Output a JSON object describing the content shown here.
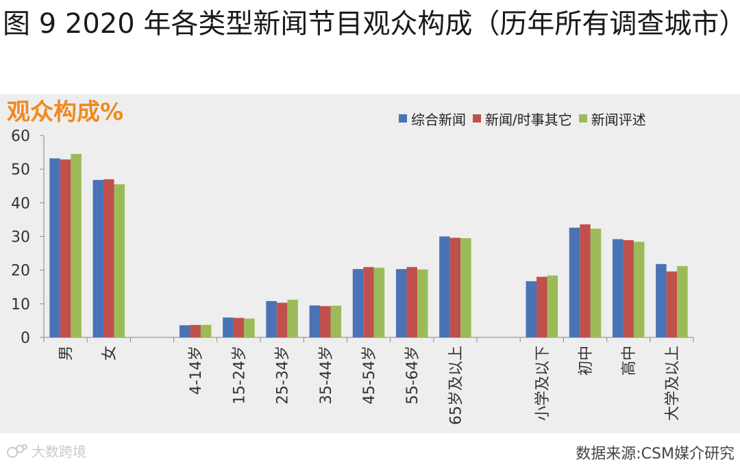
{
  "heading": "图 9 2020 年各类型新闻节目观众构成（历年所有调查城市）",
  "watermark": "大数跨境",
  "source": "数据来源:CSM媒介研究",
  "chart_data": {
    "type": "bar",
    "ylabel": "观众构成%",
    "ylim": [
      0,
      60
    ],
    "yticks": [
      0,
      10,
      20,
      30,
      40,
      50,
      60
    ],
    "grid": false,
    "legend_position": "top-right",
    "categories": [
      "男",
      "女",
      "",
      "4-14岁",
      "15-24岁",
      "25-34岁",
      "35-44岁",
      "45-54岁",
      "55-64岁",
      "65岁及以上",
      "",
      "小学及以下",
      "初中",
      "高中",
      "大学及以上"
    ],
    "series": [
      {
        "name": "综合新闻",
        "color": "#4a72b6",
        "values": [
          53.2,
          46.8,
          null,
          3.6,
          5.9,
          10.8,
          9.5,
          20.3,
          20.3,
          30.0,
          null,
          16.7,
          32.6,
          29.2,
          21.8
        ]
      },
      {
        "name": "新闻/时事其它",
        "color": "#c0504d",
        "values": [
          52.9,
          47.0,
          null,
          3.7,
          5.8,
          10.3,
          9.3,
          20.9,
          20.9,
          29.6,
          null,
          18.0,
          33.6,
          28.9,
          19.6
        ]
      },
      {
        "name": "新闻评述",
        "color": "#9bbb59",
        "values": [
          54.5,
          45.5,
          null,
          3.7,
          5.6,
          11.2,
          9.4,
          20.7,
          20.2,
          29.5,
          null,
          18.4,
          32.3,
          28.4,
          21.2
        ]
      }
    ]
  }
}
